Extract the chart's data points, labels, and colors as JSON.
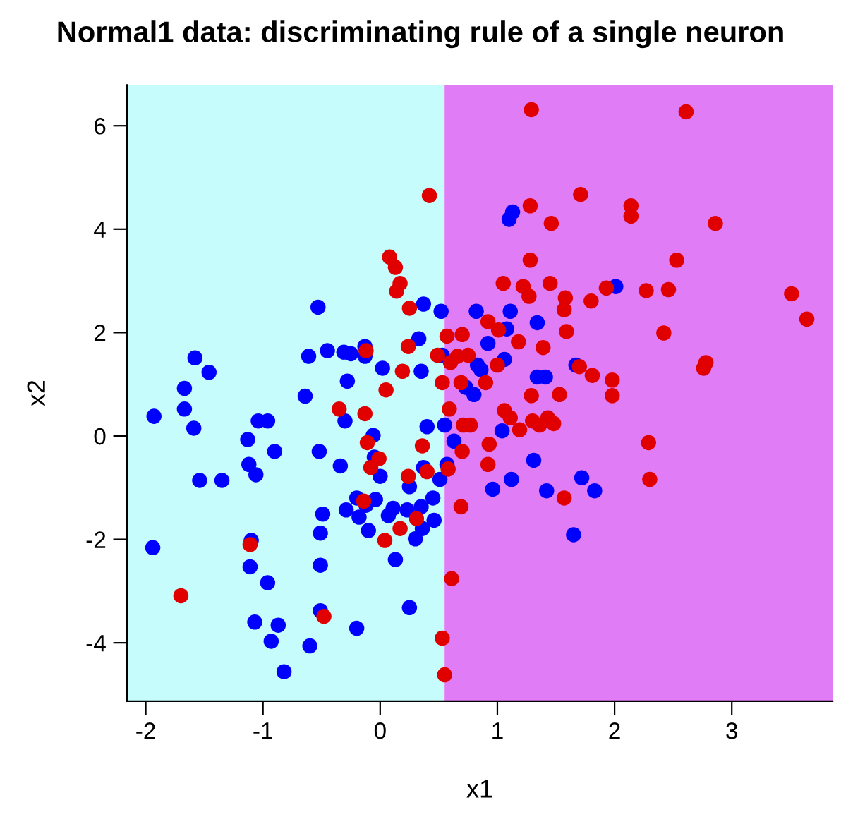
{
  "chart_data": {
    "type": "scatter",
    "title": "Normal1 data: discriminating rule of a single neuron",
    "xlabel": "x1",
    "ylabel": "x2",
    "xlim": [
      -2.16,
      3.86
    ],
    "ylim": [
      -5.13,
      6.79
    ],
    "xticks": [
      -2,
      -1,
      0,
      1,
      2,
      3
    ],
    "yticks": [
      -4,
      -2,
      0,
      2,
      4,
      6
    ],
    "marker": "circle",
    "bands": [
      {
        "axis": "x",
        "from": -2.16,
        "to": 0.55,
        "color": "#c6fcfc"
      },
      {
        "axis": "x",
        "from": 0.55,
        "to": 3.86,
        "color": "#e07cf6"
      }
    ],
    "series": [
      {
        "color": "#0000ff",
        "x": [
          -1.93,
          -1.94,
          -1.67,
          -1.67,
          -1.58,
          -1.46,
          -1.59,
          -1.54,
          -1.35,
          -1.13,
          -1.04,
          -1.12,
          -1.06,
          -0.96,
          -0.9,
          -0.61,
          -0.64,
          -0.53,
          -0.45,
          -0.31,
          -0.25,
          -0.28,
          -0.3,
          -0.13,
          -0.13,
          -0.06,
          0.02,
          -0.05,
          0.0,
          -0.04,
          -0.52,
          -0.96,
          -1.07,
          -1.1,
          -1.11,
          -0.87,
          -0.93,
          -0.82,
          -0.51,
          -0.51,
          -0.51,
          -0.6,
          -0.49,
          -0.2,
          -0.12,
          0.13,
          0.3,
          0.36,
          0.23,
          0.25,
          0.37,
          0.35,
          0.46,
          0.45,
          0.25,
          0.07,
          -0.2,
          -0.29,
          -0.18,
          -0.34,
          -0.1,
          0.11,
          0.52,
          0.33,
          0.35,
          0.37,
          0.53,
          0.4,
          0.51,
          0.55,
          0.57,
          0.63,
          0.73,
          0.83,
          0.8,
          0.82,
          0.92,
          0.86,
          0.96,
          1.06,
          1.08,
          1.11,
          1.12,
          1.1,
          1.13,
          1.34,
          1.31,
          1.34,
          1.41,
          1.42,
          1.65,
          1.67,
          1.72,
          1.83,
          2.01,
          1.04
        ],
        "values": [
          0.38,
          -2.16,
          0.92,
          0.52,
          1.51,
          1.23,
          0.15,
          -0.86,
          -0.86,
          -0.07,
          0.29,
          -0.55,
          -0.75,
          0.29,
          -0.3,
          1.54,
          0.77,
          2.49,
          1.65,
          1.62,
          1.59,
          1.06,
          0.29,
          1.54,
          1.73,
          0.01,
          1.31,
          -0.41,
          -0.78,
          -1.23,
          -0.3,
          -2.84,
          -3.6,
          -2.02,
          -2.53,
          -3.66,
          -3.97,
          -4.56,
          -1.88,
          -2.5,
          -3.38,
          -4.06,
          -1.51,
          -1.2,
          -1.34,
          -2.39,
          -1.99,
          -1.79,
          -1.43,
          -0.98,
          -0.61,
          -1.37,
          -1.63,
          -1.2,
          -3.32,
          -1.54,
          -3.72,
          -1.43,
          -1.57,
          -0.58,
          -1.83,
          -1.4,
          2.41,
          1.88,
          1.25,
          2.55,
          1.56,
          0.18,
          -0.84,
          0.21,
          -0.55,
          -0.1,
          0.94,
          1.37,
          0.8,
          2.41,
          1.79,
          1.28,
          -1.03,
          1.48,
          2.07,
          2.41,
          -0.84,
          4.19,
          4.33,
          2.19,
          -0.47,
          1.14,
          1.14,
          -1.06,
          -1.91,
          1.37,
          -0.81,
          -1.06,
          2.89,
          0.1
        ]
      },
      {
        "color": "#e00000",
        "x": [
          -1.7,
          -1.11,
          -0.48,
          -0.12,
          -0.35,
          -0.13,
          0.05,
          0.08,
          0.13,
          0.14,
          0.17,
          0.25,
          0.24,
          0.19,
          0.42,
          -0.11,
          -0.08,
          -0.01,
          -0.14,
          0.04,
          0.17,
          0.24,
          0.31,
          0.36,
          0.4,
          0.49,
          0.57,
          0.6,
          0.66,
          0.7,
          0.75,
          0.53,
          0.59,
          0.58,
          0.69,
          0.71,
          0.7,
          0.77,
          0.61,
          0.53,
          0.55,
          0.69,
          0.9,
          1.0,
          0.92,
          1.01,
          1.05,
          0.93,
          0.92,
          1.22,
          1.28,
          1.28,
          1.29,
          1.3,
          1.36,
          1.43,
          1.48,
          1.19,
          1.11,
          1.06,
          1.18,
          1.27,
          1.39,
          1.46,
          1.45,
          1.57,
          1.7,
          1.58,
          1.29,
          1.53,
          1.57,
          1.8,
          1.59,
          1.81,
          1.98,
          1.98,
          1.71,
          1.93,
          2.14,
          2.14,
          2.27,
          2.29,
          2.3,
          2.42,
          2.46,
          2.53,
          2.76,
          2.78,
          2.86,
          2.61,
          3.51,
          3.64
        ],
        "values": [
          -3.09,
          -2.1,
          -3.49,
          1.65,
          0.52,
          0.43,
          0.89,
          3.46,
          3.26,
          2.8,
          2.95,
          2.47,
          1.73,
          1.25,
          4.65,
          -0.13,
          -0.61,
          -0.44,
          -1.26,
          -2.02,
          -1.79,
          -0.78,
          -1.6,
          -0.19,
          -0.69,
          1.56,
          1.93,
          1.42,
          1.54,
          1.96,
          1.56,
          1.03,
          0.52,
          -0.64,
          1.03,
          0.21,
          -0.3,
          0.21,
          -2.76,
          -3.91,
          -4.62,
          -1.37,
          1.03,
          1.37,
          2.21,
          2.05,
          2.95,
          -0.16,
          -0.55,
          2.89,
          3.4,
          4.45,
          0.78,
          0.29,
          0.21,
          0.35,
          0.24,
          0.12,
          0.35,
          0.49,
          1.82,
          2.7,
          1.71,
          4.11,
          2.95,
          2.44,
          1.34,
          2.67,
          6.31,
          0.8,
          -1.2,
          2.61,
          2.02,
          1.17,
          1.08,
          0.78,
          4.67,
          2.86,
          4.45,
          4.25,
          2.81,
          -0.13,
          -0.84,
          1.99,
          2.83,
          3.4,
          1.31,
          1.42,
          4.11,
          6.27,
          2.75,
          2.26
        ]
      }
    ]
  }
}
